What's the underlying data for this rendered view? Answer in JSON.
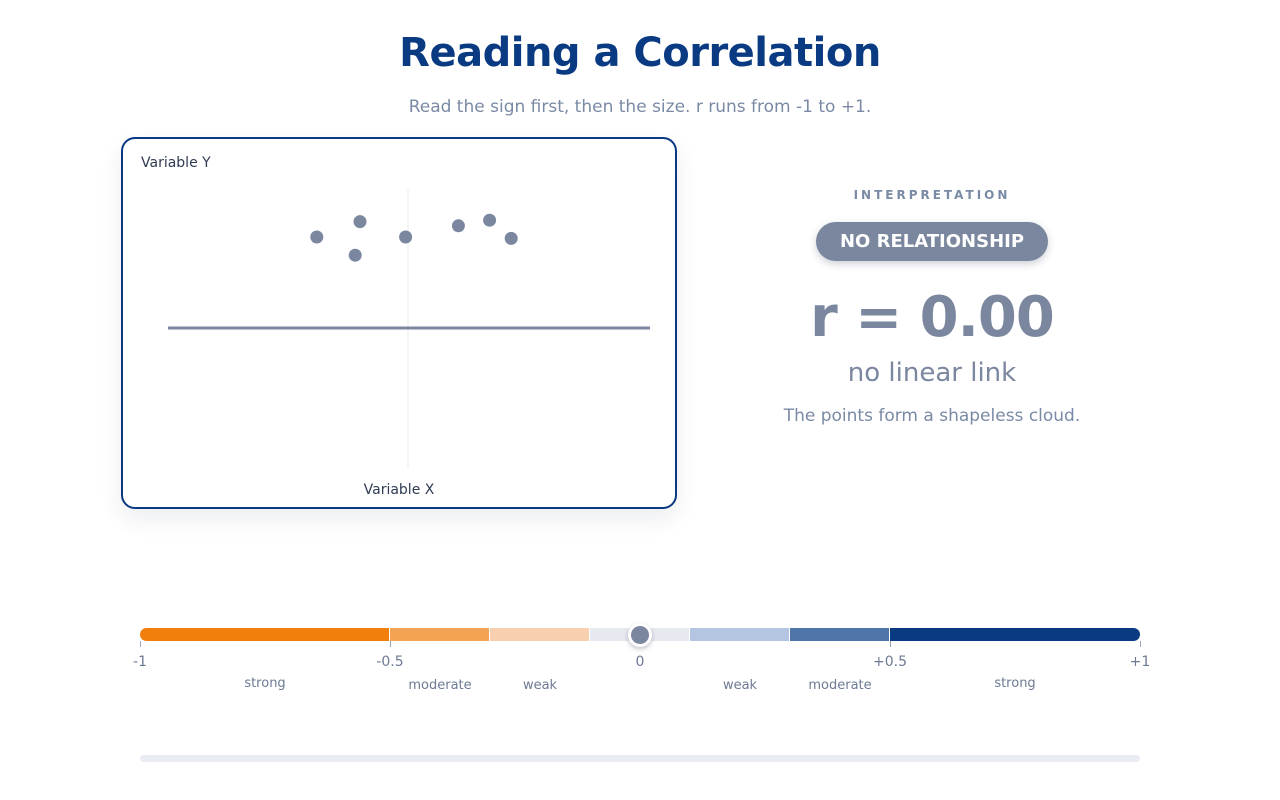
{
  "header": {
    "title": "Reading a Correlation",
    "subtitle": "Read the sign first, then the size. r runs from -1 to +1."
  },
  "chart_data": {
    "type": "scatter",
    "xlabel": "Variable X",
    "ylabel": "Variable Y",
    "x_range": [
      -1,
      1
    ],
    "y_range": [
      -1,
      1
    ],
    "points": [
      {
        "x": -0.38,
        "y": 0.65
      },
      {
        "x": -0.2,
        "y": 0.76
      },
      {
        "x": -0.22,
        "y": 0.52
      },
      {
        "x": -0.01,
        "y": 0.65
      },
      {
        "x": 0.21,
        "y": 0.73
      },
      {
        "x": 0.34,
        "y": 0.77
      },
      {
        "x": 0.43,
        "y": 0.64
      }
    ],
    "fit_line": {
      "slope": 0,
      "intercept": 0
    },
    "point_color": "#7a879f"
  },
  "panel": {
    "interpretation_label": "INTERPRETATION",
    "badge": "NO RELATIONSHIP",
    "r_text": "r = 0.00",
    "strength": "no linear link",
    "description": "The points form a shapeless cloud."
  },
  "scale": {
    "value": 0.0,
    "segments": [
      {
        "from": -1.0,
        "to": -0.5,
        "color": "#f07f0c"
      },
      {
        "from": -0.5,
        "to": -0.3,
        "color": "#f4a253"
      },
      {
        "from": -0.3,
        "to": -0.1,
        "color": "#f8d0b0"
      },
      {
        "from": -0.1,
        "to": 0.1,
        "color": "#e6e9ef"
      },
      {
        "from": 0.1,
        "to": 0.3,
        "color": "#b3c5e0"
      },
      {
        "from": 0.3,
        "to": 0.5,
        "color": "#4f76a8"
      },
      {
        "from": 0.5,
        "to": 1.0,
        "color": "#0a3a82"
      }
    ],
    "ticks": [
      {
        "value": -1,
        "label": "-1"
      },
      {
        "value": -0.5,
        "label": "-0.5"
      },
      {
        "value": 0,
        "label": "0"
      },
      {
        "value": 0.5,
        "label": "+0.5"
      },
      {
        "value": 1,
        "label": "+1"
      }
    ],
    "zones": [
      {
        "center": -0.75,
        "label": "strong",
        "row": 1
      },
      {
        "center": -0.4,
        "label": "moderate",
        "row": 2
      },
      {
        "center": -0.2,
        "label": "weak",
        "row": 2
      },
      {
        "center": 0.2,
        "label": "weak",
        "row": 2
      },
      {
        "center": 0.4,
        "label": "moderate",
        "row": 2
      },
      {
        "center": 0.75,
        "label": "strong",
        "row": 1
      }
    ]
  }
}
